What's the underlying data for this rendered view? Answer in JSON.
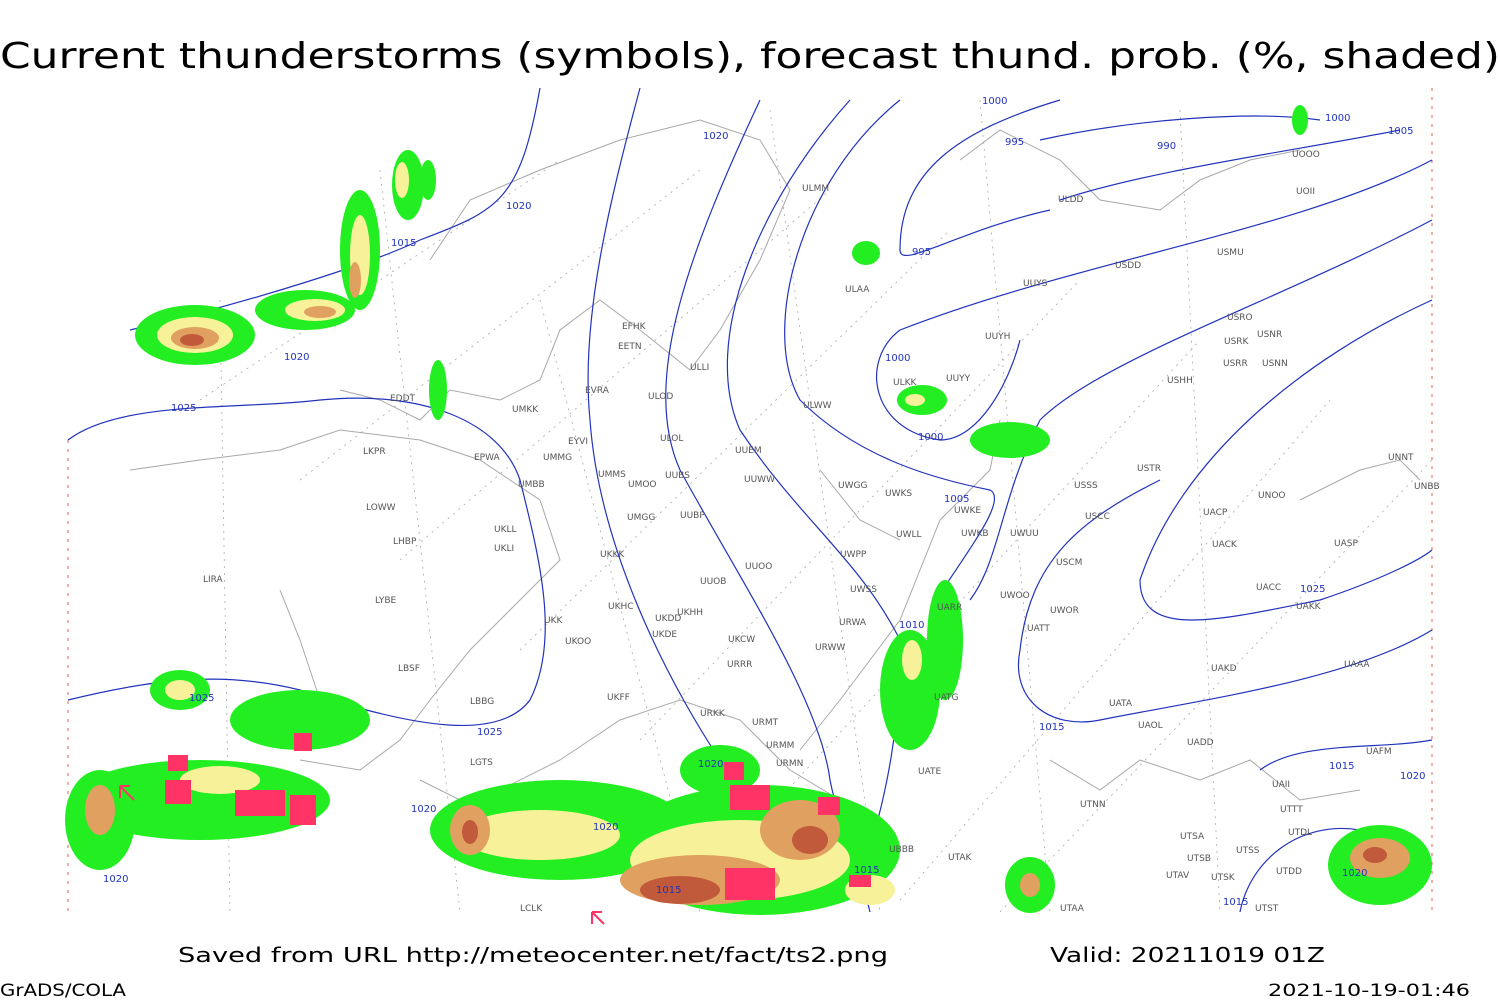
{
  "title": "Current thunderstorms (symbols), forecast thund. prob. (%, shaded)",
  "footer": {
    "source": "Saved from URL http://meteocenter.net/fact/ts2.png",
    "valid": "Valid: 20211019 01Z",
    "software": "GrADS/COLA",
    "timestamp": "2021-10-19-01:46"
  },
  "isobar_labels": [
    1000,
    995,
    990,
    1000,
    1005,
    1020,
    1020,
    1015,
    995,
    1020,
    1025,
    1000,
    1000,
    1005,
    1025,
    1010,
    1025,
    1025,
    1015,
    1015,
    1020,
    1020,
    1020,
    1020,
    1020,
    1015,
    1015,
    1020,
    1015
  ],
  "stations": [
    "EFHK",
    "EETN",
    "EVRA",
    "ULOD",
    "UMKK",
    "EDDT",
    "EYVI",
    "EPWA",
    "UMMG",
    "ULOL",
    "UUEM",
    "LKPR",
    "UMMS",
    "UMOO",
    "UUBS",
    "UUWW",
    "UWGG",
    "UWKS",
    "UMBB",
    "LOWW",
    "UKLL",
    "UUBP",
    "UMGG",
    "UWKE",
    "UKLI",
    "LHBP",
    "UKKK",
    "UUOO",
    "UWPP",
    "UWLL",
    "UWKB",
    "UWUU",
    "LIRA",
    "UUOB",
    "UWSS",
    "LYBE",
    "UKHH",
    "UKHC",
    "UKDD",
    "UKDE",
    "UKCW",
    "URWA",
    "UKK",
    "UKOO",
    "URWW",
    "LBSF",
    "URRR",
    "LBBG",
    "UKFF",
    "URKK",
    "URMT",
    "URMM",
    "URMN",
    "LGTS",
    "UBBB",
    "UTAK",
    "UATE",
    "UATG",
    "UARR",
    "UWOO",
    "UWOR",
    "UATT",
    "USCM",
    "USCC",
    "USSS",
    "USTR",
    "UUYH",
    "UUYY",
    "ULKK",
    "ULWW",
    "ULAA",
    "UUYS",
    "USDD",
    "ULDD",
    "ULMM",
    "USHH",
    "USRR",
    "USRK",
    "USRO",
    "USNR",
    "USNN",
    "UNOO",
    "UACP",
    "UACK",
    "UASP",
    "UACC",
    "UAKK",
    "UAKD",
    "UAAA",
    "UATA",
    "UAOL",
    "UADD",
    "UTNN",
    "UTSA",
    "UTSB",
    "UTSS",
    "UTAV",
    "UTSK",
    "UTDD",
    "UTDL",
    "UTTT",
    "UAII",
    "UTST",
    "UTAA",
    "UAFM",
    "UNNT",
    "UNBB",
    "USMU",
    "UOOO",
    "UOII",
    "ULLI",
    "LCLK"
  ]
}
